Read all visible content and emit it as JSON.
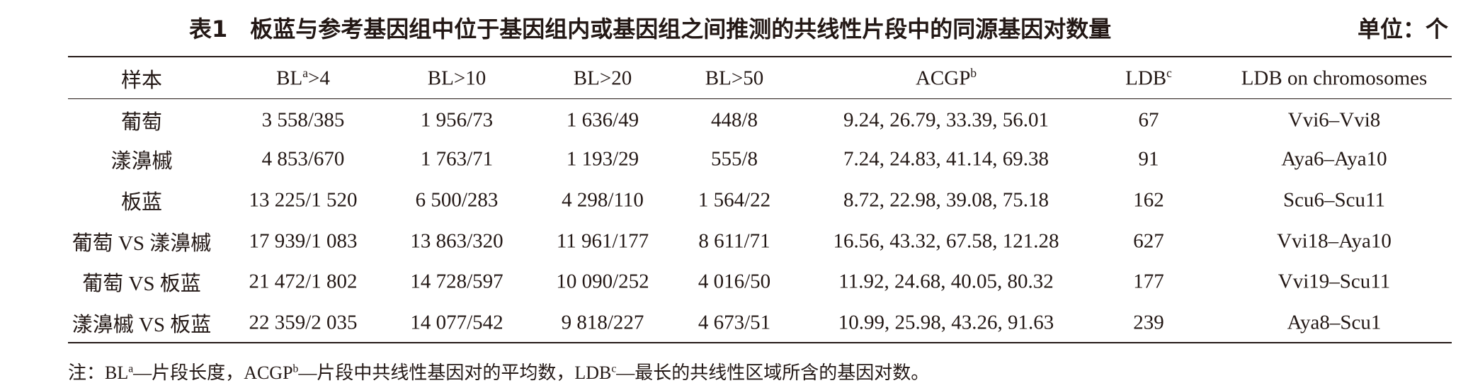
{
  "header": {
    "title": "表1　板蓝与参考基因组中位于基因组内或基因组之间推测的共线性片段中的同源基因对数量",
    "unit": "单位：个"
  },
  "table": {
    "columns": [
      "样本",
      {
        "text": "BL",
        "sup": "a",
        "tail": ">4"
      },
      "BL>10",
      "BL>20",
      "BL>50",
      {
        "text": "ACGP",
        "sup": "b"
      },
      {
        "text": "LDB",
        "sup": "c"
      },
      "LDB on chromosomes"
    ],
    "rows": [
      [
        "葡萄",
        "3 558/385",
        "1 956/73",
        "1 636/49",
        "448/8",
        "9.24, 26.79, 33.39, 56.01",
        "67",
        "Vvi6–Vvi8"
      ],
      [
        "漾濞槭",
        "4 853/670",
        "1 763/71",
        "1 193/29",
        "555/8",
        "7.24, 24.83, 41.14, 69.38",
        "91",
        "Aya6–Aya10"
      ],
      [
        "板蓝",
        "13 225/1 520",
        "6 500/283",
        "4 298/110",
        "1 564/22",
        "8.72, 22.98, 39.08, 75.18",
        "162",
        "Scu6–Scu11"
      ],
      [
        "葡萄 VS 漾濞槭",
        "17 939/1 083",
        "13 863/320",
        "11 961/177",
        "8 611/71",
        "16.56, 43.32, 67.58, 121.28",
        "627",
        "Vvi18–Aya10"
      ],
      [
        "葡萄 VS 板蓝",
        "21 472/1 802",
        "14 728/597",
        "10 090/252",
        "4 016/50",
        "11.92, 24.68, 40.05, 80.32",
        "177",
        "Vvi19–Scu11"
      ],
      [
        "漾濞槭 VS 板蓝",
        "22 359/2 035",
        "14 077/542",
        "9 818/227",
        "4 673/51",
        "10.99, 25.98, 43.26, 91.63",
        "239",
        "Aya8–Scu1"
      ]
    ]
  },
  "note": {
    "label": "注：",
    "items": [
      {
        "text": "BL",
        "sup": "a",
        "tail": "—片段长度，"
      },
      {
        "text": "ACGP",
        "sup": "b",
        "tail": "—片段中共线性基因对的平均数，"
      },
      {
        "text": "LDB",
        "sup": "c",
        "tail": "—最长的共线性区域所含的基因对数。"
      }
    ]
  }
}
